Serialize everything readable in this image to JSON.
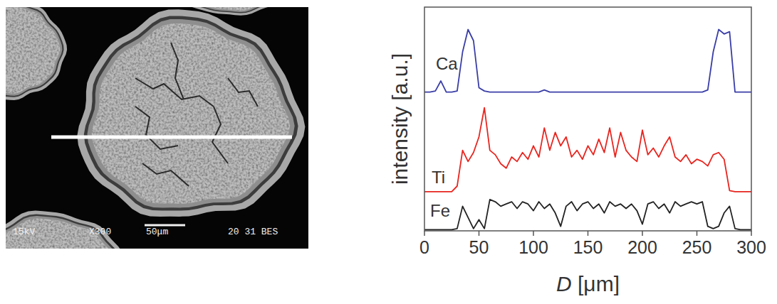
{
  "chart_data": {
    "type": "line",
    "x_label": "D [μm]",
    "y_label": "intensity [a.u.]",
    "x": [
      0,
      5,
      10,
      15,
      20,
      25,
      30,
      35,
      40,
      45,
      50,
      55,
      60,
      65,
      70,
      75,
      80,
      85,
      90,
      95,
      100,
      105,
      110,
      115,
      120,
      125,
      130,
      135,
      140,
      145,
      150,
      155,
      160,
      165,
      170,
      175,
      180,
      185,
      190,
      195,
      200,
      205,
      210,
      215,
      220,
      225,
      230,
      235,
      240,
      245,
      250,
      255,
      260,
      265,
      270,
      275,
      280,
      285,
      290,
      295,
      300
    ],
    "xlim": [
      0,
      300
    ],
    "xticks": [
      0,
      50,
      100,
      150,
      200,
      250,
      300
    ],
    "ylim": [
      0,
      100
    ],
    "tick_labels": "x",
    "series": [
      {
        "name": "Ca",
        "color": "#3a3ea6",
        "values": [
          62,
          62,
          62.5,
          67,
          62,
          62,
          62.5,
          80,
          90,
          85,
          64,
          62.5,
          62,
          62,
          62,
          62,
          62,
          62,
          62,
          62,
          62,
          62,
          63,
          62,
          62,
          62,
          62,
          62,
          62,
          62,
          62,
          62,
          62,
          62,
          62,
          62,
          62,
          62,
          62,
          62,
          62,
          62,
          62,
          62,
          62,
          62,
          62,
          62,
          62,
          62,
          62,
          62,
          63,
          80,
          90,
          88,
          89,
          62,
          62,
          62,
          62
        ]
      },
      {
        "name": "Ti",
        "color": "#e8251f",
        "values": [
          17.5,
          17.5,
          17.5,
          17.5,
          17.5,
          17.5,
          20,
          36,
          31,
          35,
          42,
          55,
          36,
          34,
          30,
          28,
          33,
          31,
          35,
          32,
          38,
          33,
          46,
          36,
          44,
          38,
          42,
          33,
          36,
          32,
          38,
          34,
          41,
          35,
          46,
          33,
          44,
          36,
          33,
          31,
          45,
          34,
          37,
          33,
          38,
          42,
          33,
          31,
          34,
          30,
          32,
          31,
          29,
          34,
          35,
          32,
          18,
          17.5,
          17.5,
          17.5,
          17.5
        ]
      },
      {
        "name": "Fe",
        "color": "#222222",
        "values": [
          0.5,
          0.5,
          0.5,
          0.5,
          0.5,
          0.5,
          1,
          11,
          6,
          1,
          5,
          1,
          14,
          13,
          11,
          12,
          13,
          10,
          13,
          12,
          9,
          13,
          10,
          12,
          8,
          2,
          11,
          13,
          9,
          12,
          13,
          10,
          12,
          8,
          13,
          11,
          12,
          10,
          12,
          9,
          3,
          12,
          13,
          10,
          12,
          8,
          13,
          11,
          12,
          13,
          12,
          13,
          2,
          1,
          2,
          8,
          11,
          1,
          0.5,
          0.5,
          0.5
        ]
      }
    ]
  },
  "image": {
    "labels": [
      "15kV",
      "X300",
      "50μm",
      "20 31 BES"
    ]
  }
}
